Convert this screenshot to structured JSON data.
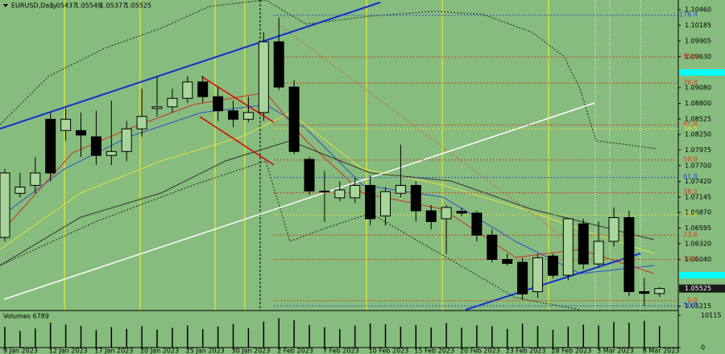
{
  "chart_data": {
    "type": "candlestick",
    "title": "EURUSD,Daily",
    "categories": [
      "9 Jan 2023",
      null,
      null,
      "12 Jan 2023",
      null,
      null,
      "17 Jan 2023",
      null,
      null,
      "20 Jan 2023",
      null,
      null,
      "25 Jan 2023",
      null,
      null,
      "30 Jan 2023",
      null,
      null,
      "2 Feb 2023",
      null,
      null,
      "7 Feb 2023",
      null,
      null,
      "10 Feb 2023",
      null,
      null,
      "15 Feb 2023",
      null,
      null,
      "20 Feb 2023",
      null,
      null,
      "23 Feb 2023",
      null,
      null,
      "28 Feb 2023",
      null,
      null,
      "3 Mar 2023",
      null,
      null,
      "8 Mar 2023",
      null
    ],
    "open": [
      1.0643,
      1.0721,
      1.0735,
      1.0852,
      1.0832,
      1.0832,
      1.0821,
      1.0788,
      1.0795,
      1.0835,
      1.0871,
      1.0874,
      1.0889,
      1.0918,
      1.0892,
      1.0867,
      1.0852,
      1.0864,
      1.0989,
      1.0909,
      1.0781,
      1.0725,
      1.0713,
      1.0713,
      1.0735,
      1.0681,
      1.0721,
      1.0735,
      1.069,
      1.0676,
      1.0689,
      1.0686,
      1.0647,
      1.0604,
      1.0599,
      1.0547,
      1.061,
      1.0576,
      1.0667,
      1.0596,
      1.0636,
      1.0678,
      1.0547,
      1.05437
    ],
    "high": [
      1.0764,
      1.0757,
      1.0785,
      1.0864,
      1.0871,
      1.0864,
      1.0867,
      1.0885,
      1.0849,
      1.0906,
      1.0928,
      1.0906,
      1.0928,
      1.0928,
      1.0909,
      1.0885,
      1.0892,
      1.1006,
      1.1032,
      1.0921,
      1.0785,
      1.0761,
      1.0742,
      1.0749,
      1.0752,
      1.0732,
      1.0807,
      1.0742,
      1.07,
      1.07,
      1.0696,
      1.069,
      1.0657,
      1.0614,
      1.0607,
      1.0614,
      1.0614,
      1.0676,
      1.0676,
      1.0671,
      1.0696,
      1.069,
      1.0571,
      1.05549
    ],
    "low": [
      1.0636,
      1.0714,
      1.0721,
      1.0742,
      1.0814,
      1.0785,
      1.0771,
      1.0771,
      1.0778,
      1.0821,
      1.0857,
      1.0864,
      1.0881,
      1.0881,
      1.0849,
      1.0838,
      1.0847,
      1.0849,
      1.0904,
      1.079,
      1.0718,
      1.0671,
      1.0707,
      1.0704,
      1.0664,
      1.0664,
      1.0714,
      1.0671,
      1.0657,
      1.0614,
      1.0681,
      1.0636,
      1.0599,
      1.0593,
      1.0533,
      1.0536,
      1.0571,
      1.0567,
      1.0587,
      1.059,
      1.0627,
      1.0539,
      1.0522,
      1.05377
    ],
    "close": [
      1.0757,
      1.0732,
      1.0757,
      1.0757,
      1.0852,
      1.0824,
      1.0788,
      1.0795,
      1.0835,
      1.0857,
      1.0874,
      1.0889,
      1.0918,
      1.0892,
      1.0867,
      1.0852,
      1.0864,
      1.0989,
      1.0909,
      1.0795,
      1.0725,
      1.0724,
      1.0727,
      1.0735,
      1.0676,
      1.0724,
      1.0735,
      1.069,
      1.0671,
      1.0696,
      1.0686,
      1.0647,
      1.0604,
      1.0597,
      1.0543,
      1.0607,
      1.0576,
      1.0676,
      1.0596,
      1.0636,
      1.0678,
      1.0547,
      1.0544,
      1.05525
    ],
    "bull_color": "#a8d59a",
    "bear_color": "#000000",
    "ylim": [
      1.0515,
      1.1063
    ],
    "yticks": [
      {
        "value": 1.1046,
        "label": "1.10460"
      },
      1.10185,
      1.09905,
      {
        "value": 1.0963,
        "label": "1.09630"
      },
      {
        "value": 1.0908,
        "label": "1.09080"
      },
      {
        "value": 1.088,
        "label": "1.08800"
      },
      1.08525,
      {
        "value": 1.0825,
        "label": "1.08250"
      },
      1.07975,
      {
        "value": 1.077,
        "label": "1.07700"
      },
      {
        "value": 1.0742,
        "label": "1.07420"
      },
      1.07145,
      {
        "value": 1.0687,
        "label": "1.06870"
      },
      1.06595,
      {
        "value": 1.0632,
        "label": "1.06320"
      },
      {
        "value": 1.0604,
        "label": "1.06040"
      },
      1.05215
    ],
    "fib_levels": [
      {
        "label": "176.4",
        "price": 1.1036,
        "color": "#3050d0"
      },
      {
        "label": "85.4",
        "price": 1.0962,
        "color": "#d04020"
      },
      {
        "label": "76.4",
        "price": 1.0916,
        "color": "#d04020"
      },
      {
        "label": "61.8",
        "price": 1.0842,
        "color": "#d04020"
      },
      {
        "label": "14.6",
        "price": 1.0835,
        "color": "#e0e040"
      },
      {
        "label": "50.0",
        "price": 1.078,
        "color": "#d04020"
      },
      {
        "label": "61.8",
        "price": 1.0749,
        "color": "#3050d0"
      },
      {
        "label": "38.2",
        "price": 1.0722,
        "color": "#d04020"
      },
      {
        "label": "23.6",
        "price": 1.0683,
        "color": "#e0e040"
      },
      {
        "label": "23.6",
        "price": 1.0647,
        "color": "#d04020"
      },
      {
        "label": "14.6",
        "price": 1.0604,
        "color": "#d04020"
      },
      {
        "label": "0.0",
        "price": 1.0531,
        "color": "#d04020"
      },
      {
        "label": "50.0",
        "price": 1.0522,
        "color": "#3050d0"
      }
    ],
    "volume_label": "Volumes 6789",
    "volumes": [
      6500,
      5200,
      6000,
      7800,
      7200,
      6800,
      5500,
      6400,
      5900,
      6700,
      5600,
      6200,
      6900,
      5800,
      6600,
      7400,
      6100,
      8200,
      9200,
      8600,
      7100,
      6400,
      5800,
      6900,
      7600,
      7300,
      6500,
      7100,
      6300,
      7700,
      6200,
      7000,
      6700,
      5900,
      7500,
      6800,
      5600,
      6600,
      7200,
      6900,
      8000,
      7800,
      8400,
      6789
    ],
    "volume_ylim": [
      0,
      10115
    ],
    "volume_yticks": [
      0,
      10115
    ]
  }
}
